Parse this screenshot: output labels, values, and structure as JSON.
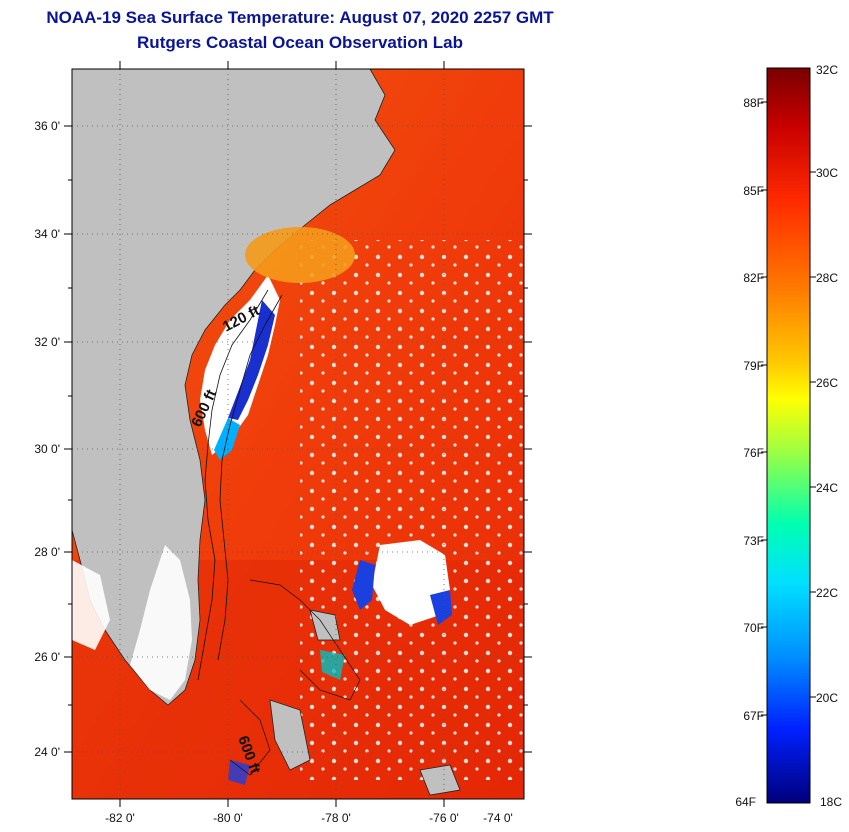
{
  "header": {
    "title": "NOAA-19 Sea Surface Temperature:  August 07, 2020 2257 GMT",
    "subtitle": "Rutgers Coastal Ocean Observation Lab"
  },
  "map": {
    "lat_labels": [
      "36 0'",
      "34 0'",
      "32 0'",
      "30 0'",
      "28 0'",
      "26 0'",
      "24 0'"
    ],
    "lon_labels": [
      "-82 0'",
      "-80 0'",
      "-78 0'",
      "-76 0'",
      "-74 0'"
    ],
    "contour_labels": [
      "120 ft",
      "600 ft",
      "600 ft"
    ]
  },
  "colorbar": {
    "celsius_labels": [
      "32C",
      "30C",
      "28C",
      "26C",
      "24C",
      "22C",
      "20C",
      "18C"
    ],
    "fahrenheit_labels": [
      "88F",
      "85F",
      "82F",
      "79F",
      "76F",
      "73F",
      "70F",
      "67F",
      "64F"
    ]
  }
}
